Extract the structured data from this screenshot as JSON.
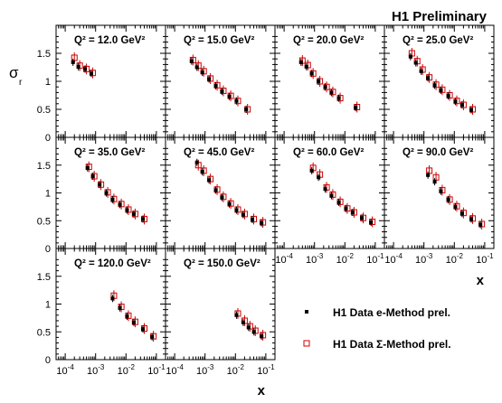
{
  "header": {
    "title": "H1 Preliminary"
  },
  "axes": {
    "ylabel_main": "σ",
    "ylabel_sub": "r",
    "xlabel": "x",
    "y_ticks": [
      "0",
      "0.5",
      "1",
      "1.5"
    ],
    "x_ticks": [
      {
        "base": "10",
        "exp": "-4"
      },
      {
        "base": "10",
        "exp": "-3"
      },
      {
        "base": "10",
        "exp": "-2"
      },
      {
        "base": "10",
        "exp": "-1"
      }
    ]
  },
  "legend": {
    "e_method": "H1 Data e-Method prel.",
    "sigma_method": "H1 Data Σ-Method  prel."
  },
  "colors": {
    "e_method": "#000000",
    "sigma_method": "#cc0000"
  },
  "chart_data": {
    "type": "scatter",
    "title": "H1 Preliminary",
    "xlabel": "x",
    "ylabel": "σ_r",
    "xscale": "log",
    "xlim": [
      5e-05,
      0.2
    ],
    "ylim": [
      0,
      2
    ],
    "panels": [
      {
        "q2_label": "Q² = 12.0 GeV²",
        "e_method": [
          [
            0.0002,
            1.34
          ],
          [
            0.0003,
            1.26
          ],
          [
            0.0005,
            1.22
          ],
          [
            0.0008,
            1.14
          ]
        ],
        "sigma_method": [
          [
            0.0002,
            1.42
          ],
          [
            0.0003,
            1.28
          ],
          [
            0.0005,
            1.22
          ],
          [
            0.0008,
            1.15
          ]
        ]
      },
      {
        "q2_label": "Q² = 15.0 GeV²",
        "e_method": [
          [
            0.0004,
            1.36
          ],
          [
            0.0006,
            1.25
          ],
          [
            0.0009,
            1.16
          ],
          [
            0.0015,
            1.04
          ],
          [
            0.0025,
            0.92
          ],
          [
            0.004,
            0.82
          ],
          [
            0.007,
            0.73
          ],
          [
            0.012,
            0.65
          ],
          [
            0.025,
            0.5
          ]
        ],
        "sigma_method": [
          [
            0.0004,
            1.38
          ],
          [
            0.0006,
            1.28
          ],
          [
            0.0009,
            1.18
          ],
          [
            0.0015,
            1.05
          ],
          [
            0.0025,
            0.93
          ],
          [
            0.004,
            0.83
          ],
          [
            0.007,
            0.74
          ],
          [
            0.012,
            0.65
          ],
          [
            0.025,
            0.5
          ]
        ]
      },
      {
        "q2_label": "Q² = 20.0 GeV²",
        "e_method": [
          [
            0.0004,
            1.34
          ],
          [
            0.0006,
            1.26
          ],
          [
            0.0009,
            1.14
          ],
          [
            0.0015,
            1.0
          ],
          [
            0.0025,
            0.9
          ],
          [
            0.004,
            0.8
          ],
          [
            0.007,
            0.7
          ],
          [
            0.025,
            0.53
          ]
        ],
        "sigma_method": [
          [
            0.0004,
            1.37
          ],
          [
            0.0006,
            1.29
          ],
          [
            0.0009,
            1.14
          ],
          [
            0.0015,
            1.0
          ],
          [
            0.0025,
            0.9
          ],
          [
            0.004,
            0.81
          ],
          [
            0.007,
            0.7
          ],
          [
            0.025,
            0.54
          ]
        ]
      },
      {
        "q2_label": "Q² = 25.0 GeV²",
        "e_method": [
          [
            0.0004,
            1.44
          ],
          [
            0.0006,
            1.33
          ],
          [
            0.0009,
            1.18
          ],
          [
            0.0015,
            1.06
          ],
          [
            0.0025,
            0.93
          ],
          [
            0.004,
            0.84
          ],
          [
            0.007,
            0.74
          ],
          [
            0.012,
            0.64
          ],
          [
            0.02,
            0.58
          ],
          [
            0.04,
            0.49
          ]
        ],
        "sigma_method": [
          [
            0.0004,
            1.5
          ],
          [
            0.0006,
            1.36
          ],
          [
            0.0009,
            1.21
          ],
          [
            0.0015,
            1.07
          ],
          [
            0.0025,
            0.94
          ],
          [
            0.004,
            0.85
          ],
          [
            0.007,
            0.75
          ],
          [
            0.012,
            0.65
          ],
          [
            0.02,
            0.58
          ],
          [
            0.04,
            0.5
          ]
        ]
      },
      {
        "q2_label": "Q² = 35.0 GeV²",
        "e_method": [
          [
            0.0006,
            1.45
          ],
          [
            0.0009,
            1.3
          ],
          [
            0.0015,
            1.15
          ],
          [
            0.0025,
            1.0
          ],
          [
            0.004,
            0.88
          ],
          [
            0.007,
            0.79
          ],
          [
            0.012,
            0.69
          ],
          [
            0.02,
            0.62
          ],
          [
            0.04,
            0.53
          ]
        ],
        "sigma_method": [
          [
            0.0006,
            1.47
          ],
          [
            0.0009,
            1.3
          ],
          [
            0.0015,
            1.15
          ],
          [
            0.0025,
            1.01
          ],
          [
            0.004,
            0.89
          ],
          [
            0.007,
            0.8
          ],
          [
            0.012,
            0.7
          ],
          [
            0.02,
            0.62
          ],
          [
            0.04,
            0.53
          ]
        ]
      },
      {
        "q2_label": "Q² = 45.0 GeV²",
        "e_method": [
          [
            0.0006,
            1.55
          ],
          [
            0.0009,
            1.38
          ],
          [
            0.0015,
            1.23
          ],
          [
            0.0025,
            1.05
          ],
          [
            0.004,
            0.92
          ],
          [
            0.007,
            0.8
          ],
          [
            0.012,
            0.69
          ],
          [
            0.02,
            0.61
          ],
          [
            0.04,
            0.52
          ],
          [
            0.08,
            0.46
          ]
        ],
        "sigma_method": [
          [
            0.0006,
            1.5
          ],
          [
            0.0009,
            1.4
          ],
          [
            0.0015,
            1.25
          ],
          [
            0.0025,
            1.06
          ],
          [
            0.004,
            0.93
          ],
          [
            0.007,
            0.81
          ],
          [
            0.012,
            0.7
          ],
          [
            0.02,
            0.62
          ],
          [
            0.04,
            0.53
          ],
          [
            0.08,
            0.47
          ]
        ]
      },
      {
        "q2_label": "Q² = 60.0 GeV²",
        "e_method": [
          [
            0.0009,
            1.4
          ],
          [
            0.0015,
            1.28
          ],
          [
            0.0025,
            1.07
          ],
          [
            0.004,
            0.95
          ],
          [
            0.007,
            0.83
          ],
          [
            0.012,
            0.72
          ],
          [
            0.02,
            0.65
          ],
          [
            0.04,
            0.55
          ],
          [
            0.08,
            0.47
          ]
        ],
        "sigma_method": [
          [
            0.0009,
            1.45
          ],
          [
            0.0015,
            1.33
          ],
          [
            0.0025,
            1.1
          ],
          [
            0.004,
            0.97
          ],
          [
            0.007,
            0.84
          ],
          [
            0.012,
            0.72
          ],
          [
            0.02,
            0.65
          ],
          [
            0.04,
            0.55
          ],
          [
            0.08,
            0.48
          ]
        ]
      },
      {
        "q2_label": "Q² = 90.0 GeV²",
        "e_method": [
          [
            0.0015,
            1.32
          ],
          [
            0.0025,
            1.2
          ],
          [
            0.004,
            1.03
          ],
          [
            0.007,
            0.88
          ],
          [
            0.012,
            0.75
          ],
          [
            0.02,
            0.63
          ],
          [
            0.04,
            0.53
          ],
          [
            0.08,
            0.43
          ]
        ],
        "sigma_method": [
          [
            0.0015,
            1.4
          ],
          [
            0.0025,
            1.28
          ],
          [
            0.004,
            1.05
          ],
          [
            0.007,
            0.88
          ],
          [
            0.012,
            0.76
          ],
          [
            0.02,
            0.64
          ],
          [
            0.04,
            0.54
          ],
          [
            0.08,
            0.44
          ]
        ]
      },
      {
        "q2_label": "Q² = 120.0 GeV²",
        "e_method": [
          [
            0.004,
            1.1
          ],
          [
            0.007,
            0.93
          ],
          [
            0.012,
            0.78
          ],
          [
            0.02,
            0.67
          ],
          [
            0.04,
            0.55
          ],
          [
            0.08,
            0.41
          ]
        ],
        "sigma_method": [
          [
            0.004,
            1.15
          ],
          [
            0.007,
            0.95
          ],
          [
            0.012,
            0.79
          ],
          [
            0.02,
            0.68
          ],
          [
            0.04,
            0.56
          ],
          [
            0.08,
            0.42
          ]
        ]
      },
      {
        "q2_label": "Q² = 150.0 GeV²",
        "e_method": [
          [
            0.012,
            0.8
          ],
          [
            0.02,
            0.67
          ],
          [
            0.03,
            0.58
          ],
          [
            0.045,
            0.5
          ],
          [
            0.08,
            0.42
          ]
        ],
        "sigma_method": [
          [
            0.012,
            0.83
          ],
          [
            0.02,
            0.7
          ],
          [
            0.03,
            0.6
          ],
          [
            0.045,
            0.52
          ],
          [
            0.08,
            0.44
          ]
        ]
      }
    ]
  }
}
